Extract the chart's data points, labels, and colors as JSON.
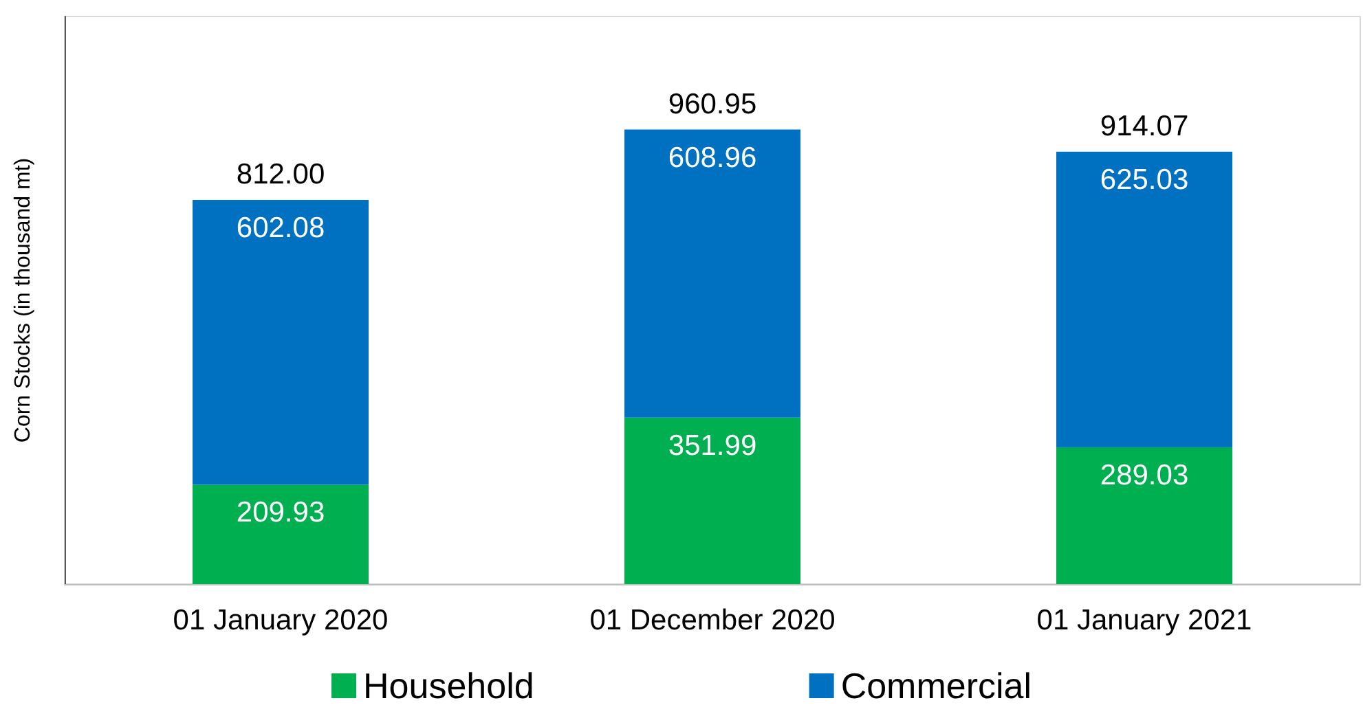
{
  "chart_data": {
    "type": "bar",
    "stacked": true,
    "ylabel": "Corn Stocks (in thousand mt)",
    "categories": [
      "01 January 2020",
      "01 December 2020",
      "01 January 2021"
    ],
    "series": [
      {
        "name": "Household",
        "color": "#00b050",
        "values": [
          209.93,
          351.99,
          289.03
        ]
      },
      {
        "name": "Commercial",
        "color": "#0070c0",
        "values": [
          602.08,
          608.96,
          625.03
        ]
      }
    ],
    "totals": [
      "812.00",
      "960.95",
      "914.07"
    ],
    "ylim": [
      0,
      1200
    ],
    "data_labels": true,
    "tick_labels": "x",
    "grid": false,
    "legend": "bottom"
  }
}
